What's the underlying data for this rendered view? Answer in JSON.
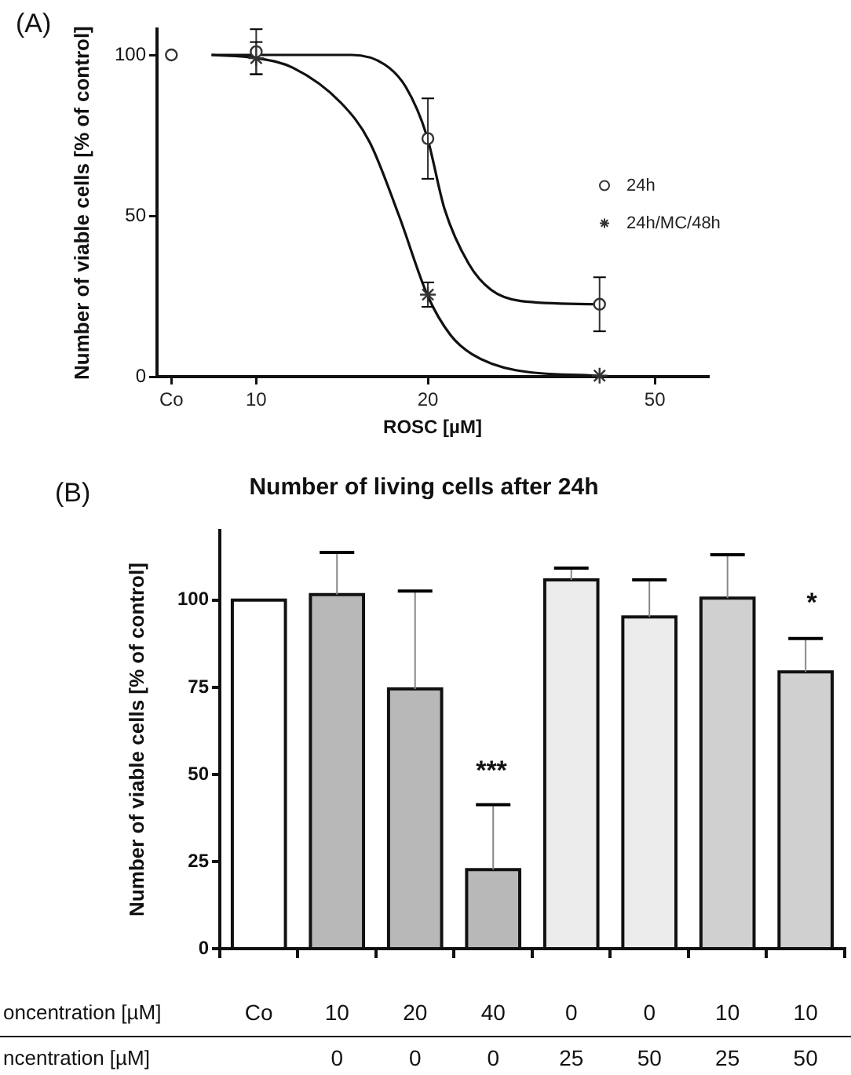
{
  "chart_data": [
    {
      "type": "scatter",
      "xlabel": "ROSC [µM]",
      "ylabel": "Number of viable cells [% of control]",
      "log": "x",
      "xlim": [
        6.7,
        62
      ],
      "xticks": [
        {
          "value": 7.1,
          "label": "Co"
        },
        10,
        20,
        50
      ],
      "ylim": [
        0,
        108
      ],
      "yticks": [
        0,
        50,
        100
      ],
      "grid": false,
      "legend": "right",
      "annotations": [
        "(A)"
      ],
      "series": [
        {
          "name": "24h",
          "type": "scatter",
          "marker": "circle",
          "color": "#333333",
          "x": [
            7.1,
            10,
            20,
            40
          ],
          "values": [
            100,
            101,
            74,
            22.5
          ],
          "errors": [
            null,
            7,
            12.5,
            8.4
          ]
        },
        {
          "name": "24h/MC/48h",
          "type": "scatter",
          "marker": "cross",
          "color": "#333333",
          "x": [
            10,
            20,
            40
          ],
          "values": [
            99,
            25.5,
            0.3
          ],
          "errors": [
            5,
            3.8,
            null
          ]
        },
        {
          "type": "line",
          "marker": "none",
          "color": "#111111",
          "x": [
            8.35,
            14.7,
            16.8,
            18.3,
            19.9,
            21.4,
            23.6,
            25.8,
            29.1,
            39.5
          ],
          "values": [
            100,
            100,
            97,
            90,
            75,
            52,
            35,
            27,
            23.5,
            22.5
          ]
        },
        {
          "type": "line",
          "marker": "none",
          "color": "#111111",
          "x": [
            8.35,
            10,
            11.6,
            14.1,
            15.8,
            17.8,
            20,
            21.9,
            23.9,
            28.5,
            39.5
          ],
          "values": [
            100,
            99,
            96,
            85,
            73,
            50,
            25,
            13,
            7,
            2,
            0.3
          ]
        }
      ]
    },
    {
      "type": "bar",
      "title": "Number of living cells after 24h",
      "ylabel": "Number of viable cells [% of control]",
      "categories": [
        "Co\n",
        "10\n0",
        "20\n0",
        "40\n0",
        "0\n25",
        "0\n50",
        "10\n25",
        "10\n50"
      ],
      "values": [
        100,
        101.6,
        74.5,
        22.7,
        105.8,
        95.2,
        100.6,
        79.4
      ],
      "errors": [
        null,
        [
          101.6,
          113.7
        ],
        [
          74.5,
          102.6
        ],
        [
          22.7,
          41.3
        ],
        [
          105.8,
          109.2
        ],
        [
          95.2,
          105.8
        ],
        [
          100.6,
          113
        ],
        [
          79.4,
          89
        ]
      ],
      "colors": [
        "#ffffff",
        "#b8b8b8",
        "#b8b8b8",
        "#b8b8b8",
        "#ececec",
        "#ececec",
        "#d0d0d0",
        "#d0d0d0"
      ],
      "ylim": [
        0,
        120
      ],
      "yticks": [
        0,
        25,
        50,
        75,
        100
      ],
      "grid": false,
      "annotations": [
        "(B)",
        "oncentration [µM]",
        "ncentration [µM]",
        "***",
        "*"
      ]
    }
  ]
}
